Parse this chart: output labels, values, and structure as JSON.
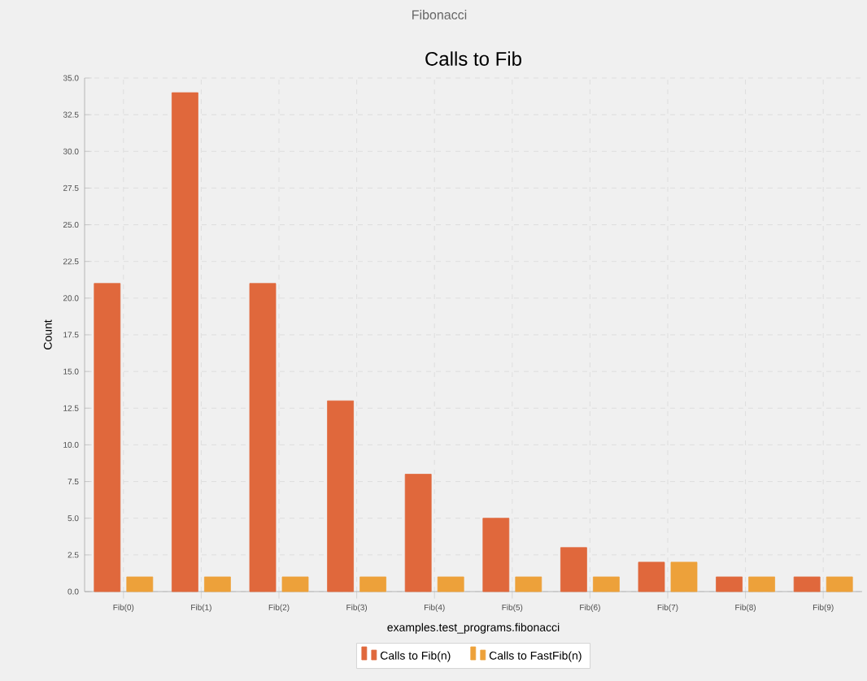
{
  "chart_data": {
    "type": "bar",
    "title": "Calls to Fib",
    "xlabel": "examples.test_programs.fibonacci",
    "ylabel": "Count",
    "annotations": [
      "Fibonacci"
    ],
    "categories": [
      "Fib(0)",
      "Fib(1)",
      "Fib(2)",
      "Fib(3)",
      "Fib(4)",
      "Fib(5)",
      "Fib(6)",
      "Fib(7)",
      "Fib(8)",
      "Fib(9)"
    ],
    "series": [
      {
        "name": "Calls to Fib(n)",
        "color": "#e0683c",
        "values": [
          21,
          34,
          21,
          13,
          8,
          5,
          3,
          2,
          1,
          1
        ]
      },
      {
        "name": "Calls to FastFib(n)",
        "color": "#eda13a",
        "values": [
          1,
          1,
          1,
          1,
          1,
          1,
          1,
          2,
          1,
          1
        ]
      }
    ],
    "ylim": [
      0,
      35
    ],
    "yticks": [
      {
        "value": 0,
        "label": "0.0"
      },
      {
        "value": 2.5,
        "label": "2.5"
      },
      {
        "value": 5,
        "label": "5.0"
      },
      {
        "value": 7.5,
        "label": "7.5"
      },
      {
        "value": 10,
        "label": "10.0"
      },
      {
        "value": 12.5,
        "label": "12.5"
      },
      {
        "value": 15,
        "label": "15.0"
      },
      {
        "value": 17.5,
        "label": "17.5"
      },
      {
        "value": 20,
        "label": "20.0"
      },
      {
        "value": 22.5,
        "label": "22.5"
      },
      {
        "value": 25,
        "label": "25.0"
      },
      {
        "value": 27.5,
        "label": "27.5"
      },
      {
        "value": 30,
        "label": "30.0"
      },
      {
        "value": 32.5,
        "label": "32.5"
      },
      {
        "value": 35,
        "label": "35.0"
      }
    ],
    "grid": true,
    "legend": "bottom"
  }
}
